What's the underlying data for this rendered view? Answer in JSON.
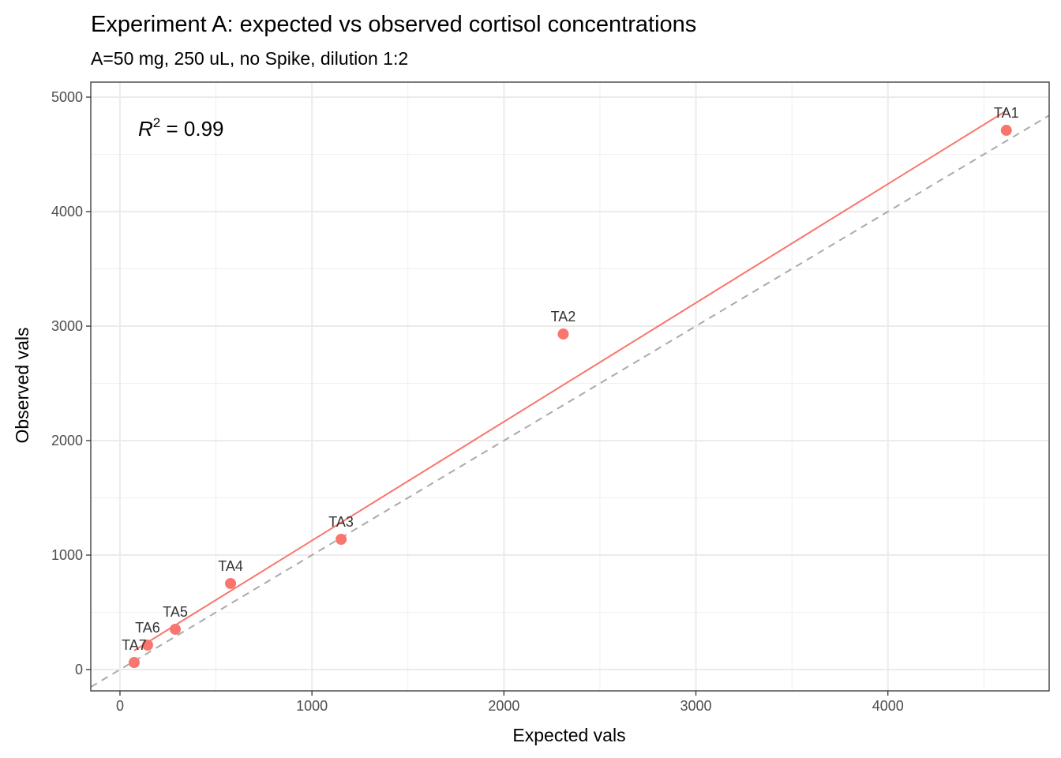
{
  "chart_data": {
    "type": "scatter",
    "title": "Experiment A: expected vs observed cortisol concentrations",
    "subtitle": "A=50 mg, 250 uL, no Spike, dilution 1:2",
    "xlabel": "Expected vals",
    "ylabel": "Observed vals",
    "xlim": [
      -152,
      4840
    ],
    "ylim": [
      -186,
      5131
    ],
    "xticks": [
      0,
      1000,
      2000,
      3000,
      4000
    ],
    "yticks": [
      0,
      1000,
      2000,
      3000,
      4000,
      5000
    ],
    "grid": true,
    "points": [
      {
        "label": "TA1",
        "x": 4617,
        "y": 4710
      },
      {
        "label": "TA2",
        "x": 2309,
        "y": 2931
      },
      {
        "label": "TA3",
        "x": 1152,
        "y": 1138
      },
      {
        "label": "TA4",
        "x": 576,
        "y": 752
      },
      {
        "label": "TA5",
        "x": 288,
        "y": 352
      },
      {
        "label": "TA6",
        "x": 144,
        "y": 214
      },
      {
        "label": "TA7",
        "x": 74,
        "y": 62
      }
    ],
    "fit_line": {
      "slope": 1.038,
      "intercept": 89,
      "x_from": 74,
      "x_to": 4617
    },
    "identity_line": {
      "slope": 1,
      "intercept": 0,
      "style": "dashed"
    },
    "annotation": {
      "symbol": "R",
      "exponent": "2",
      "text": " = 0.99"
    },
    "colors": {
      "points": "#F8766D",
      "fit": "#F8766D",
      "identity": "#AAAAAA",
      "grid": "#EBEBEB"
    }
  }
}
